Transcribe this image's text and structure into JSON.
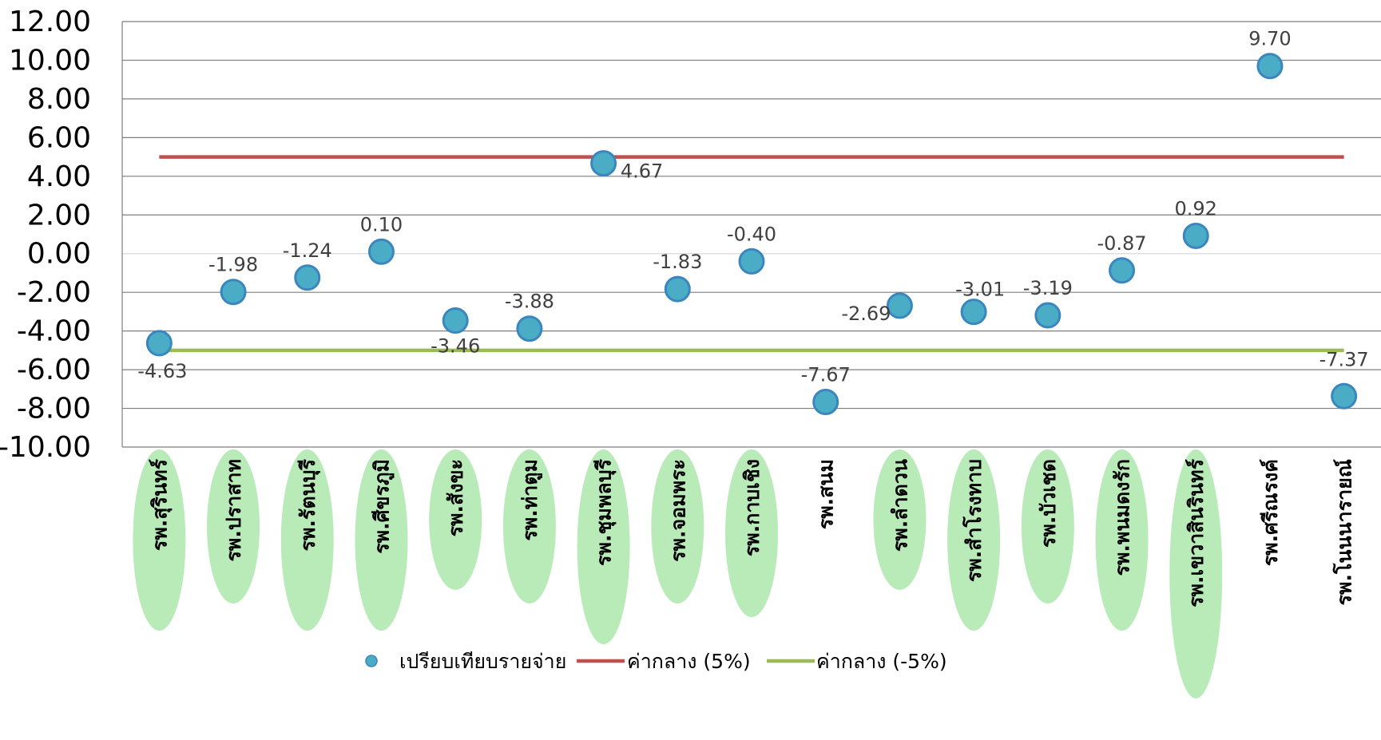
{
  "chart_data": {
    "type": "scatter",
    "categories": [
      "รพ.สุรินทร์",
      "รพ.ปราสาท",
      "รพ.รัตนบุรี",
      "รพ.ศีขรภูมิ",
      "รพ.สังขะ",
      "รพ.ท่าตูม",
      "รพ.ชุมพลบุรี",
      "รพ.จอมพระ",
      "รพ.กาบเชิง",
      "รพ.สนม",
      "รพ.ลำดวน",
      "รพ.สำโรงทาบ",
      "รพ.บัวเชด",
      "รพ.พนมดงรัก",
      "รพ.เขวาสินรินทร์",
      "รพ.ศรีณรงค์",
      "รพ.โนนนารายณ์"
    ],
    "category_highlighted": [
      true,
      true,
      true,
      true,
      true,
      true,
      true,
      true,
      true,
      false,
      true,
      true,
      true,
      true,
      true,
      false,
      false
    ],
    "series": [
      {
        "name": "เปรียบเทียบรายจ่าย",
        "kind": "scatter",
        "color": "#4BACC6",
        "values": [
          -4.63,
          -1.98,
          -1.24,
          0.1,
          -3.46,
          -3.88,
          4.67,
          -1.83,
          -0.4,
          -7.67,
          -2.69,
          -3.01,
          -3.19,
          -0.87,
          0.92,
          9.7,
          -7.37
        ],
        "labels": [
          "-4.63",
          "-1.98",
          "-1.24",
          "0.10",
          "-3.46",
          "-3.88",
          "4.67",
          "-1.83",
          "-0.40",
          "-7.67",
          "-2.69",
          "-3.01",
          "-3.19",
          "-0.87",
          "0.92",
          "9.70",
          "-7.37"
        ]
      },
      {
        "name": "ค่ากลาง (5%)",
        "kind": "line",
        "color": "#C0504D",
        "value": 5
      },
      {
        "name": "ค่ากลาง (-5%)",
        "kind": "line",
        "color": "#9BBB59",
        "value": -5
      }
    ],
    "yticks": [
      "12.00",
      "10.00",
      "8.00",
      "6.00",
      "4.00",
      "2.00",
      "0.00",
      "-2.00",
      "-4.00",
      "-6.00",
      "-8.00",
      "-10.00"
    ],
    "ylim": [
      -10,
      12
    ],
    "grid": true,
    "legend_position": "bottom",
    "highlight_color": "#B8EBB8"
  }
}
